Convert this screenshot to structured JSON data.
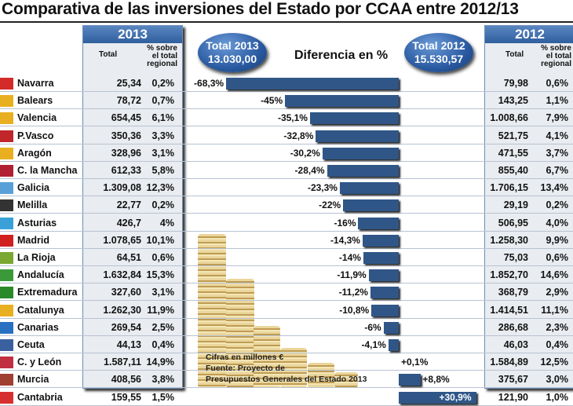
{
  "title": "Comparativa de las inversiones del Estado por CCAA entre 2012/13",
  "panel_2013": {
    "year": "2013",
    "col_total": "Total",
    "col_pct": [
      "% sobre",
      "el total",
      "regional"
    ]
  },
  "panel_2012": {
    "year": "2012",
    "col_total": "Total",
    "col_pct": [
      "% sobre",
      "el total",
      "regional"
    ]
  },
  "total_2013": {
    "label": "Total 2013",
    "value": "13.030,00"
  },
  "total_2012": {
    "label": "Total 2012",
    "value": "15.530,57"
  },
  "diff_title": "Diferencia en %",
  "note": [
    "Cifras en millones €",
    "Fuente: Proyecto de",
    "Presupuestos Generales del Estado 2013"
  ],
  "colors": {
    "bar": "#2f5687",
    "header": "#3a6aab"
  },
  "chart_data": {
    "type": "bar",
    "title": "Diferencia en %",
    "categories": [
      "Navarra",
      "Balears",
      "Valencia",
      "P.Vasco",
      "Aragón",
      "C. la Mancha",
      "Galicia",
      "Melilla",
      "Asturias",
      "Madrid",
      "La Rioja",
      "Andalucía",
      "Extremadura",
      "Catalunya",
      "Canarias",
      "Ceuta",
      "C. y León",
      "Murcia",
      "Cantabria"
    ],
    "values": [
      -68.3,
      -45,
      -35.1,
      -32.8,
      -30.2,
      -28.4,
      -23.3,
      -22,
      -16,
      -14.3,
      -14,
      -11.9,
      -11.2,
      -10.8,
      -6,
      -4.1,
      0.1,
      8.8,
      30.9
    ],
    "labels": [
      "-68,3%",
      "-45%",
      "-35,1%",
      "-32,8%",
      "-30,2%",
      "-28,4%",
      "-23,3%",
      "-22%",
      "-16%",
      "-14,3%",
      "-14%",
      "-11,9%",
      "-11,2%",
      "-10,8%",
      "-6%",
      "-4,1%",
      "+0,1%",
      "+8,8%",
      "+30,9%"
    ],
    "total_2013": [
      "25,34",
      "78,72",
      "654,45",
      "350,36",
      "328,96",
      "612,33",
      "1.309,08",
      "22,77",
      "426,7",
      "1.078,65",
      "64,51",
      "1.632,84",
      "327,60",
      "1.262,30",
      "269,54",
      "44,13",
      "1.587,11",
      "408,56",
      "159,55"
    ],
    "pct_2013": [
      "0,2%",
      "0,7%",
      "6,1%",
      "3,3%",
      "3,1%",
      "5,8%",
      "12,3%",
      "0,2%",
      "4%",
      "10,1%",
      "0,6%",
      "15,3%",
      "3,1%",
      "11,9%",
      "2,5%",
      "0,4%",
      "14,9%",
      "3,8%",
      "1,5%"
    ],
    "total_2012": [
      "79,98",
      "143,25",
      "1.008,66",
      "521,75",
      "471,55",
      "855,40",
      "1.706,15",
      "29,19",
      "506,95",
      "1.258,30",
      "75,03",
      "1.852,70",
      "368,79",
      "1.414,51",
      "286,68",
      "46,03",
      "1.584,89",
      "375,67",
      "121,90"
    ],
    "pct_2012": [
      "0,6%",
      "1,1%",
      "7,9%",
      "4,1%",
      "3,7%",
      "6,7%",
      "13,4%",
      "0,2%",
      "4,0%",
      "9,9%",
      "0,6%",
      "14,6%",
      "2,9%",
      "11,1%",
      "2,3%",
      "0,4%",
      "12,5%",
      "3,0%",
      "1,0%"
    ],
    "flag_colors": [
      "#d42a2a",
      "#e8b020",
      "#e8b020",
      "#c0262a",
      "#e8b020",
      "#b02030",
      "#5aa0d8",
      "#333333",
      "#3aa0d8",
      "#d02020",
      "#7aa830",
      "#3a9a3a",
      "#2a8a2a",
      "#e8b020",
      "#2a70c0",
      "#3a60a0",
      "#c03040",
      "#a04030",
      "#d83030"
    ]
  }
}
